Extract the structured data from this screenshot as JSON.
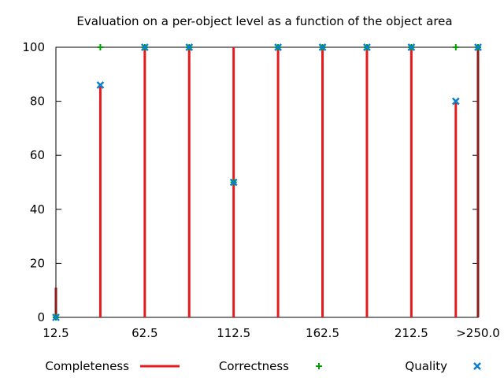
{
  "chart_data": {
    "type": "line",
    "title": "Evaluation on a per-object level as a function of the object area",
    "xlabel": "",
    "ylabel": "",
    "x_range": [
      12.5,
      250
    ],
    "ylim": [
      0,
      100
    ],
    "x_tick_labels": [
      "12.5",
      "62.5",
      "112.5",
      "162.5",
      "212.5",
      ">250.0"
    ],
    "x_tick_values": [
      12.5,
      62.5,
      112.5,
      162.5,
      212.5,
      250
    ],
    "y_ticks": [
      0,
      20,
      40,
      60,
      80,
      100
    ],
    "grid": false,
    "legend_position": "bottom",
    "x": [
      12.5,
      37.5,
      62.5,
      87.5,
      112.5,
      137.5,
      162.5,
      187.5,
      212.5,
      237.5,
      250
    ],
    "series": [
      {
        "name": "Completeness",
        "style": "impulses",
        "color": "#e41a1c",
        "values": [
          11,
          86,
          100,
          100,
          100,
          100,
          100,
          100,
          100,
          80,
          100
        ]
      },
      {
        "name": "Correctness",
        "style": "points-plus",
        "color": "#00a000",
        "values": [
          0,
          100,
          100,
          100,
          50,
          100,
          100,
          100,
          100,
          100,
          100
        ]
      },
      {
        "name": "Quality",
        "style": "points-x",
        "color": "#0a7fd0",
        "values": [
          0,
          86,
          100,
          100,
          50,
          100,
          100,
          100,
          100,
          80,
          100
        ]
      }
    ]
  }
}
